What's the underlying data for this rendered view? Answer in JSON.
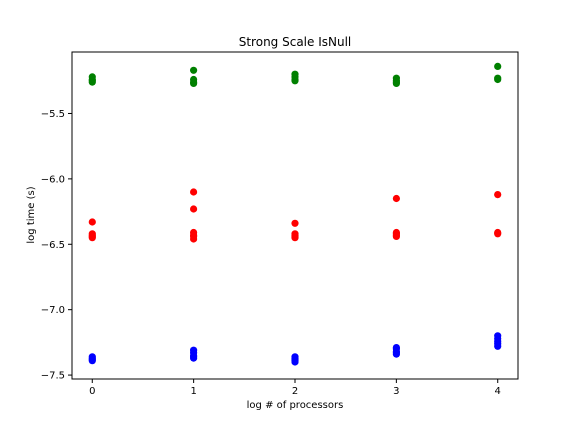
{
  "chart_data": {
    "type": "scatter",
    "title": "Strong Scale IsNull",
    "xlabel": "log # of processors",
    "ylabel": "log time (s)",
    "xlim": [
      -0.2,
      4.2
    ],
    "ylim": [
      -7.53,
      -5.03
    ],
    "xticks": [
      0,
      1,
      2,
      3,
      4
    ],
    "xtick_labels": [
      "0",
      "1",
      "2",
      "3",
      "4"
    ],
    "yticks": [
      -7.5,
      -7.0,
      -6.5,
      -6.0,
      -5.5
    ],
    "ytick_labels": [
      "−7.5",
      "−7.0",
      "−6.5",
      "−6.0",
      "−5.5"
    ],
    "grid": false,
    "series": [
      {
        "color": "#008000",
        "points": [
          [
            0,
            -5.22
          ],
          [
            0,
            -5.24
          ],
          [
            0,
            -5.25
          ],
          [
            0,
            -5.26
          ],
          [
            1,
            -5.17
          ],
          [
            1,
            -5.24
          ],
          [
            1,
            -5.26
          ],
          [
            1,
            -5.27
          ],
          [
            2,
            -5.2
          ],
          [
            2,
            -5.22
          ],
          [
            2,
            -5.24
          ],
          [
            2,
            -5.25
          ],
          [
            3,
            -5.23
          ],
          [
            3,
            -5.25
          ],
          [
            3,
            -5.26
          ],
          [
            3,
            -5.27
          ],
          [
            4,
            -5.14
          ],
          [
            4,
            -5.23
          ],
          [
            4,
            -5.24
          ]
        ]
      },
      {
        "color": "#ff0000",
        "points": [
          [
            0,
            -6.33
          ],
          [
            0,
            -6.42
          ],
          [
            0,
            -6.43
          ],
          [
            0,
            -6.44
          ],
          [
            0,
            -6.45
          ],
          [
            1,
            -6.1
          ],
          [
            1,
            -6.23
          ],
          [
            1,
            -6.41
          ],
          [
            1,
            -6.43
          ],
          [
            1,
            -6.44
          ],
          [
            1,
            -6.46
          ],
          [
            2,
            -6.34
          ],
          [
            2,
            -6.42
          ],
          [
            2,
            -6.43
          ],
          [
            2,
            -6.44
          ],
          [
            2,
            -6.45
          ],
          [
            3,
            -6.15
          ],
          [
            3,
            -6.41
          ],
          [
            3,
            -6.42
          ],
          [
            3,
            -6.43
          ],
          [
            3,
            -6.44
          ],
          [
            4,
            -6.12
          ],
          [
            4,
            -6.41
          ],
          [
            4,
            -6.42
          ]
        ]
      },
      {
        "color": "#0000ff",
        "points": [
          [
            0,
            -7.36
          ],
          [
            0,
            -7.37
          ],
          [
            0,
            -7.38
          ],
          [
            0,
            -7.39
          ],
          [
            1,
            -7.31
          ],
          [
            1,
            -7.33
          ],
          [
            1,
            -7.35
          ],
          [
            1,
            -7.36
          ],
          [
            1,
            -7.37
          ],
          [
            2,
            -7.36
          ],
          [
            2,
            -7.37
          ],
          [
            2,
            -7.38
          ],
          [
            2,
            -7.39
          ],
          [
            2,
            -7.4
          ],
          [
            3,
            -7.29
          ],
          [
            3,
            -7.3
          ],
          [
            3,
            -7.32
          ],
          [
            3,
            -7.33
          ],
          [
            3,
            -7.34
          ],
          [
            4,
            -7.2
          ],
          [
            4,
            -7.22
          ],
          [
            4,
            -7.24
          ],
          [
            4,
            -7.26
          ],
          [
            4,
            -7.28
          ]
        ]
      }
    ]
  }
}
